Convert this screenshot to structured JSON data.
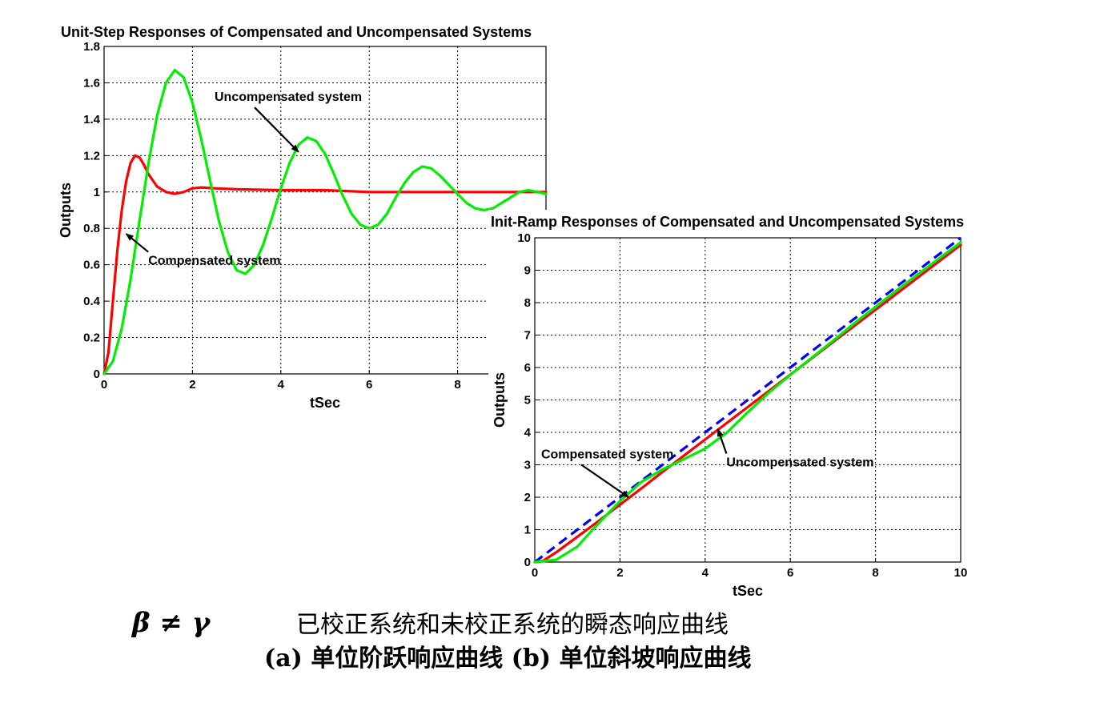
{
  "chart_data": [
    {
      "type": "line",
      "title": "Unit-Step Responses of Compensated and Uncompensated Systems",
      "xlabel": "tSec",
      "ylabel": "Outputs",
      "xlim": [
        0,
        10
      ],
      "ylim": [
        0,
        1.8
      ],
      "grid": true,
      "xticks": [
        "0",
        "2",
        "4",
        "6",
        "8"
      ],
      "yticks": [
        "0",
        "0.2",
        "0.4",
        "0.6",
        "0.8",
        "1",
        "1.2",
        "1.4",
        "1.6",
        "1.8"
      ],
      "series": [
        {
          "name": "Compensated system",
          "color": "#ff0000",
          "x": [
            0,
            0.1,
            0.2,
            0.3,
            0.4,
            0.5,
            0.6,
            0.7,
            0.8,
            0.9,
            1.0,
            1.2,
            1.4,
            1.6,
            1.8,
            2.0,
            2.2,
            2.5,
            3.0,
            4.0,
            5.0,
            6.0,
            8.0,
            10.0
          ],
          "values": [
            0,
            0.12,
            0.4,
            0.68,
            0.9,
            1.06,
            1.16,
            1.2,
            1.19,
            1.15,
            1.1,
            1.03,
            1.0,
            0.99,
            1.0,
            1.02,
            1.025,
            1.02,
            1.015,
            1.01,
            1.01,
            1.0,
            1.0,
            1.0
          ]
        },
        {
          "name": "Uncompensated system",
          "color": "#00ee00",
          "x": [
            0,
            0.2,
            0.4,
            0.6,
            0.8,
            1.0,
            1.2,
            1.4,
            1.6,
            1.8,
            2.0,
            2.2,
            2.4,
            2.6,
            2.8,
            3.0,
            3.2,
            3.4,
            3.6,
            3.8,
            4.0,
            4.2,
            4.4,
            4.6,
            4.8,
            5.0,
            5.2,
            5.4,
            5.6,
            5.8,
            6.0,
            6.2,
            6.4,
            6.6,
            6.8,
            7.0,
            7.2,
            7.4,
            7.6,
            7.8,
            8.0,
            8.2,
            8.4,
            8.6,
            8.8,
            9.0,
            9.2,
            9.4,
            9.6,
            9.8,
            10.0
          ],
          "values": [
            0,
            0.07,
            0.25,
            0.52,
            0.84,
            1.15,
            1.42,
            1.6,
            1.67,
            1.63,
            1.49,
            1.29,
            1.06,
            0.84,
            0.67,
            0.57,
            0.55,
            0.6,
            0.71,
            0.86,
            1.02,
            1.16,
            1.26,
            1.3,
            1.28,
            1.21,
            1.1,
            0.98,
            0.88,
            0.82,
            0.8,
            0.82,
            0.88,
            0.97,
            1.05,
            1.11,
            1.14,
            1.13,
            1.09,
            1.04,
            0.99,
            0.94,
            0.91,
            0.9,
            0.91,
            0.94,
            0.97,
            1.0,
            1.01,
            1.0,
            0.99
          ]
        }
      ],
      "annotations": [
        {
          "text": "Uncompensated system",
          "x": 2.5,
          "y": 1.5,
          "arrow_to": [
            4.4,
            1.22
          ]
        },
        {
          "text": "Compensated system",
          "x": 1.0,
          "y": 0.6,
          "arrow_to": [
            0.5,
            0.77
          ]
        }
      ]
    },
    {
      "type": "line",
      "title": "Init-Ramp Responses of Compensated and Uncompensated Systems",
      "xlabel": "tSec",
      "ylabel": "Outputs",
      "xlim": [
        0,
        10
      ],
      "ylim": [
        0,
        10
      ],
      "grid": true,
      "xticks": [
        "0",
        "2",
        "4",
        "6",
        "8",
        "10"
      ],
      "yticks": [
        "0",
        "1",
        "2",
        "3",
        "4",
        "5",
        "6",
        "7",
        "8",
        "9",
        "10"
      ],
      "series": [
        {
          "name": "Reference ramp",
          "color": "#0000ff",
          "dashed": true,
          "x": [
            0,
            10
          ],
          "values": [
            0,
            10
          ]
        },
        {
          "name": "Compensated system",
          "color": "#ff0000",
          "x": [
            0,
            0.2,
            0.5,
            1.0,
            1.5,
            2.0,
            2.5,
            3.0,
            3.5,
            4.0,
            5.0,
            6.0,
            7.0,
            8.0,
            9.0,
            10.0
          ],
          "values": [
            0,
            0.04,
            0.3,
            0.78,
            1.27,
            1.77,
            2.27,
            2.78,
            3.28,
            3.78,
            4.78,
            5.78,
            6.78,
            7.78,
            8.78,
            9.78
          ]
        },
        {
          "name": "Uncompensated system",
          "color": "#00ee00",
          "x": [
            0,
            0.5,
            1.0,
            1.5,
            2.0,
            2.5,
            3.0,
            3.5,
            4.0,
            4.5,
            5.0,
            5.5,
            6.0,
            6.5,
            7.0,
            7.5,
            8.0,
            8.5,
            9.0,
            9.5,
            10.0
          ],
          "values": [
            0,
            0.07,
            0.48,
            1.2,
            1.88,
            2.47,
            2.86,
            3.17,
            3.5,
            3.98,
            4.62,
            5.23,
            5.77,
            6.3,
            6.82,
            7.36,
            7.87,
            8.38,
            8.88,
            9.37,
            9.86
          ]
        }
      ],
      "annotations": [
        {
          "text": "Compensated system",
          "x": 0.15,
          "y": 3.2,
          "arrow_to": [
            2.2,
            2.0
          ]
        },
        {
          "text": "Uncompensated system",
          "x": 4.5,
          "y": 2.95,
          "arrow_to": [
            4.3,
            4.1
          ]
        }
      ]
    }
  ],
  "caption": {
    "greek": "β ≠ γ",
    "line1": "已校正系统和未校正系统的瞬态响应曲线",
    "line2": "(a) 单位阶跃响应曲线    (b) 单位斜坡响应曲线"
  }
}
